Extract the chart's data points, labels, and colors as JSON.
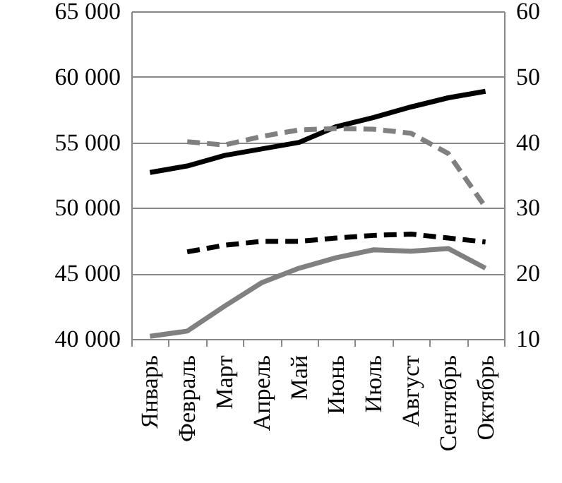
{
  "chart_data": {
    "type": "line",
    "categories": [
      "Январь",
      "Февраль",
      "Март",
      "Апрель",
      "Май",
      "Июнь",
      "Июль",
      "Август",
      "Сентябрь",
      "Октябрь"
    ],
    "series": [
      {
        "color": "#000000",
        "line_style": "solid",
        "values": [
          52700,
          53200,
          54000,
          54500,
          55000,
          56200,
          56900,
          57700,
          58400,
          58900
        ]
      },
      {
        "color": "#808080",
        "line_style": "solid",
        "values": [
          40200,
          40600,
          42500,
          44300,
          45400,
          46200,
          46800,
          46700,
          46900,
          45400
        ]
      },
      {
        "color": "#808080",
        "line_style": "dashed",
        "axis": "y2",
        "values": [
          null,
          40.1,
          39.6,
          40.9,
          41.9,
          42.1,
          42.0,
          41.4,
          38.3,
          30.1
        ]
      },
      {
        "color": "#000000",
        "line_style": "dashed",
        "axis": "y2",
        "values": [
          null,
          23.3,
          24.3,
          24.9,
          24.9,
          25.4,
          25.8,
          26.0,
          25.4,
          24.8
        ]
      }
    ],
    "ylim": [
      40000,
      65000
    ],
    "yticks": [
      {
        "value": 40000,
        "label": "40 000"
      },
      {
        "value": 45000,
        "label": "45 000"
      },
      {
        "value": 50000,
        "label": "50 000"
      },
      {
        "value": 55000,
        "label": "55 000"
      },
      {
        "value": 60000,
        "label": "60 000"
      },
      {
        "value": 65000,
        "label": "65 000"
      }
    ],
    "y2lim": [
      10,
      60
    ],
    "y2ticks": [
      10,
      20,
      30,
      40,
      50,
      60
    ],
    "grid": "y",
    "marker": "none"
  }
}
